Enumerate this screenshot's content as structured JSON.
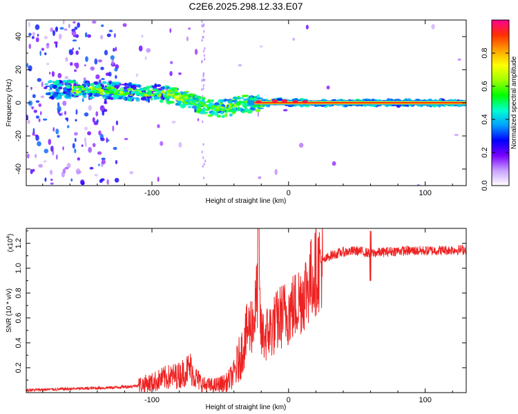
{
  "title": "C2E6.2025.298.12.33.E07",
  "chart_data": [
    {
      "type": "heatmap",
      "name": "spectrogram",
      "xlabel": "Height of straight line (km)",
      "ylabel": "Frequency (Hz)",
      "xlim": [
        -192,
        130
      ],
      "ylim": [
        -50,
        50
      ],
      "x_ticks": [
        -100,
        0,
        100
      ],
      "x_tick_labels": [
        "-100",
        "0",
        "100"
      ],
      "y_ticks": [
        -40,
        -20,
        0,
        20,
        40
      ],
      "y_tick_labels": [
        "-40",
        "-20",
        "0",
        "20",
        "40"
      ],
      "colorbar": {
        "label": "Normalized spectral amplitude",
        "range": [
          0,
          1
        ],
        "ticks": [
          0.0,
          0.2,
          0.4,
          0.6,
          0.8
        ],
        "tick_labels": [
          "0.0",
          "0.2",
          "0.4",
          "0.6",
          "0.8"
        ],
        "colors": [
          "#ffffff",
          "#c8a0ff",
          "#7a00ff",
          "#0000ff",
          "#00a0ff",
          "#00ffd0",
          "#00ff00",
          "#a0ff00",
          "#ffff00",
          "#ffa000",
          "#ff3000",
          "#ff0090"
        ]
      },
      "ridge": {
        "x": [
          -175,
          -150,
          -125,
          -100,
          -85,
          -75,
          -65,
          -55,
          -45,
          -35,
          -25,
          -15,
          -5,
          0,
          10,
          50,
          130
        ],
        "y": [
          8,
          8,
          7,
          6,
          5,
          2,
          -1,
          -4,
          -3,
          -1,
          0,
          0,
          1,
          0,
          0,
          0,
          0
        ]
      }
    },
    {
      "type": "line",
      "name": "snr",
      "xlabel": "Height of straight line (km)",
      "ylabel": "SNR (10 * v/v)",
      "y_scale_label": "(x10",
      "y_scale_exp": "4",
      "y_scale_close": ")",
      "multiplier": 10000,
      "xlim": [
        -192,
        130
      ],
      "ylim": [
        0,
        1.32
      ],
      "x_ticks": [
        -100,
        0,
        100
      ],
      "x_tick_labels": [
        "-100",
        "0",
        "100"
      ],
      "y_ticks": [
        0.2,
        0.4,
        0.6,
        0.8,
        1.0,
        1.2
      ],
      "y_tick_labels": [
        "0.2",
        "0.4",
        "0.6",
        "0.8",
        "1.0",
        "1.2"
      ],
      "color": "#ee2222",
      "series": [
        {
          "name": "SNR",
          "x": [
            -192,
            -160,
            -130,
            -115,
            -100,
            -90,
            -80,
            -72,
            -68,
            -62,
            -55,
            -45,
            -40,
            -35,
            -30,
            -25,
            -22,
            -20,
            -15,
            -10,
            -5,
            0,
            5,
            10,
            15,
            20,
            25,
            30,
            40,
            50,
            60,
            70,
            80,
            100,
            130
          ],
          "y": [
            0.02,
            0.03,
            0.04,
            0.05,
            0.08,
            0.12,
            0.14,
            0.2,
            0.12,
            0.06,
            0.05,
            0.08,
            0.15,
            0.3,
            0.5,
            0.6,
            0.9,
            0.45,
            0.48,
            0.55,
            0.62,
            0.65,
            0.7,
            0.78,
            0.88,
            0.98,
            1.05,
            1.1,
            1.13,
            1.14,
            1.12,
            1.13,
            1.14,
            1.14,
            1.15
          ]
        }
      ]
    }
  ]
}
